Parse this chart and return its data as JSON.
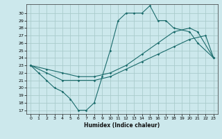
{
  "xlabel": "Humidex (Indice chaleur)",
  "bg_color": "#cce8ec",
  "grid_color": "#aacccc",
  "line_color": "#1a6b6b",
  "xlim": [
    -0.5,
    23.5
  ],
  "ylim": [
    16.5,
    31.2
  ],
  "xticks": [
    0,
    1,
    2,
    3,
    4,
    5,
    6,
    7,
    8,
    9,
    10,
    11,
    12,
    13,
    14,
    15,
    16,
    17,
    18,
    19,
    20,
    21,
    22,
    23
  ],
  "yticks": [
    17,
    18,
    19,
    20,
    21,
    22,
    23,
    24,
    25,
    26,
    27,
    28,
    29,
    30
  ],
  "series": [
    {
      "x": [
        0,
        1,
        2,
        3,
        4,
        5,
        6,
        7,
        8,
        9,
        10,
        11,
        12,
        13,
        14,
        15,
        16,
        17,
        18,
        20,
        21,
        23
      ],
      "y": [
        23,
        22,
        21,
        20,
        19.5,
        18.5,
        17,
        17,
        18,
        21.5,
        25,
        29,
        30,
        30,
        30,
        31,
        29,
        29,
        28,
        27.5,
        26,
        24
      ]
    },
    {
      "x": [
        0,
        2,
        4,
        6,
        8,
        10,
        12,
        14,
        16,
        18,
        20,
        22,
        23
      ],
      "y": [
        23,
        22,
        21,
        21,
        21,
        21.5,
        22.5,
        23.5,
        24.5,
        25.5,
        26.5,
        27,
        24
      ]
    },
    {
      "x": [
        0,
        2,
        4,
        6,
        8,
        10,
        12,
        14,
        16,
        18,
        20,
        21,
        23
      ],
      "y": [
        23,
        22.5,
        22,
        21.5,
        21.5,
        22,
        23,
        24.5,
        26,
        27.5,
        28,
        27.5,
        24
      ]
    }
  ]
}
